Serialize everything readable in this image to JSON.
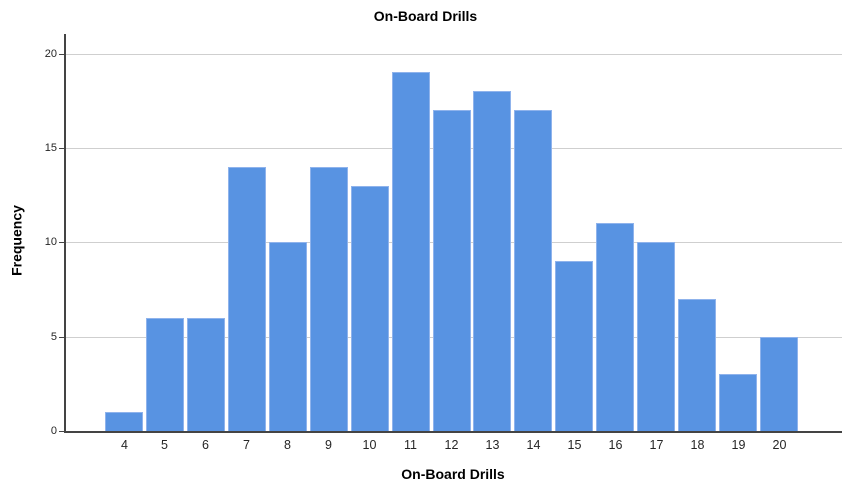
{
  "chart_data": {
    "type": "bar",
    "title": "On-Board Drills",
    "xlabel": "On-Board Drills",
    "ylabel": "Frequency",
    "categories": [
      4,
      5,
      6,
      7,
      8,
      9,
      10,
      11,
      12,
      13,
      14,
      15,
      16,
      17,
      18,
      19,
      20
    ],
    "values": [
      1,
      6,
      6,
      14,
      10,
      14,
      13,
      19,
      17,
      18,
      17,
      9,
      11,
      10,
      7,
      3,
      5
    ],
    "ylim": [
      0,
      20
    ],
    "yticks": [
      0,
      5,
      10,
      15,
      20
    ],
    "grid": "horizontal-only",
    "legend": "none",
    "colors": {
      "bar_fill": "#5893E2",
      "bar_edge": "#8FB3EC",
      "gridline": "#CFCFCF",
      "axis_line": "#444444",
      "tick_label": "#262626",
      "title_text": "#000000",
      "background": "#FFFFFF"
    }
  }
}
